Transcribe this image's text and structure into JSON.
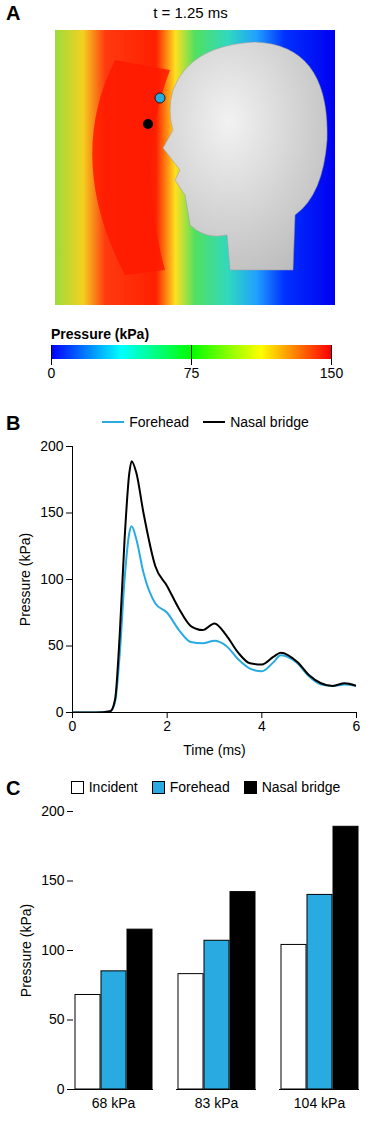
{
  "chart_data": [
    {
      "panel_label": "A",
      "type": "heatmap",
      "title": "t = 1.25 ms",
      "colorbar_label": "Pressure (kPa)",
      "colorbar_range": [
        0,
        150
      ],
      "colorbar_ticks": [
        0,
        75,
        150
      ]
    },
    {
      "panel_label": "B",
      "type": "line",
      "x": [
        0,
        0.5,
        0.8,
        0.9,
        1.0,
        1.1,
        1.2,
        1.25,
        1.35,
        1.5,
        1.75,
        2.0,
        2.25,
        2.5,
        2.75,
        3.0,
        3.25,
        3.5,
        3.75,
        4.0,
        4.25,
        4.4,
        4.75,
        5.0,
        5.25,
        5.5,
        5.75,
        6.0
      ],
      "series": [
        {
          "name": "Forehead",
          "color": "#29abe2",
          "values": [
            0,
            0,
            1,
            8,
            45,
            100,
            135,
            140,
            130,
            105,
            82,
            75,
            62,
            53,
            52,
            54,
            50,
            40,
            33,
            31,
            38,
            43,
            37,
            27,
            21,
            20,
            21,
            20
          ]
        },
        {
          "name": "Nasal bridge",
          "color": "#000000",
          "values": [
            0,
            0,
            1,
            10,
            60,
            130,
            180,
            189,
            180,
            150,
            110,
            95,
            78,
            65,
            62,
            67,
            58,
            45,
            37,
            36,
            42,
            45,
            38,
            28,
            22,
            20,
            22,
            20
          ]
        }
      ],
      "xlabel": "Time (ms)",
      "ylabel": "Pressure (kPa)",
      "xlim": [
        0,
        6
      ],
      "xticks": [
        0,
        2,
        4,
        6
      ],
      "ylim": [
        0,
        200
      ],
      "yticks": [
        0,
        50,
        100,
        150,
        200
      ],
      "legend": "top"
    },
    {
      "panel_label": "C",
      "type": "bar",
      "categories": [
        "68 kPa",
        "83 kPa",
        "104 kPa"
      ],
      "series": [
        {
          "name": "Incident",
          "color": "#ffffff",
          "values": [
            68,
            83,
            104
          ]
        },
        {
          "name": "Forehead",
          "color": "#29abe2",
          "values": [
            85,
            107,
            140
          ]
        },
        {
          "name": "Nasal bridge",
          "color": "#000000",
          "values": [
            115,
            142,
            189
          ]
        }
      ],
      "ylabel": "Pressure (kPa)",
      "ylim": [
        0,
        200
      ],
      "yticks": [
        0,
        50,
        100,
        150,
        200
      ],
      "legend": "top"
    }
  ]
}
